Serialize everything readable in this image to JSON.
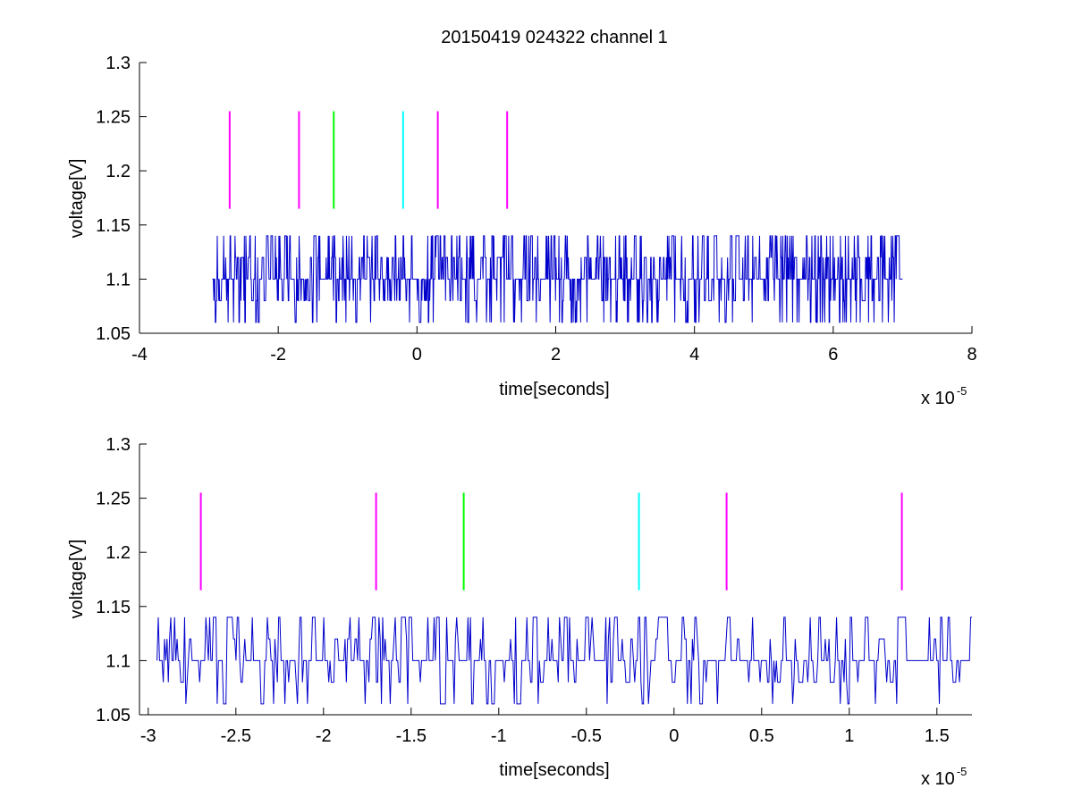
{
  "figure_title": "20150419 024322 channel 1",
  "colors": {
    "signal": "#0000cc",
    "magenta": "#ff00ff",
    "green": "#00ff00",
    "cyan": "#00ffff",
    "axis": "#000000"
  },
  "chart_data": [
    {
      "type": "line",
      "title": "20150419 024322 channel 1",
      "xlabel": "time[seconds]",
      "ylabel": "voltage[V]",
      "x_multiplier": "x 10",
      "x_exponent": "-5",
      "xlim": [
        -4,
        8
      ],
      "ylim": [
        1.05,
        1.3
      ],
      "xticks": [
        "-4",
        "-2",
        "0",
        "2",
        "4",
        "6",
        "8"
      ],
      "yticks": [
        "1.05",
        "1.1",
        "1.15",
        "1.2",
        "1.25",
        "1.3"
      ],
      "grid": false,
      "signal": {
        "x_range": [
          -2.95,
          7.0
        ],
        "levels": [
          1.06,
          1.08,
          1.1,
          1.12,
          1.14
        ],
        "baseline": 1.1
      },
      "markers": [
        {
          "x": -2.7,
          "y_range": [
            1.165,
            1.255
          ],
          "color": "magenta"
        },
        {
          "x": -1.7,
          "y_range": [
            1.165,
            1.255
          ],
          "color": "magenta"
        },
        {
          "x": -1.2,
          "y_range": [
            1.165,
            1.255
          ],
          "color": "green"
        },
        {
          "x": -0.2,
          "y_range": [
            1.165,
            1.255
          ],
          "color": "cyan"
        },
        {
          "x": 0.3,
          "y_range": [
            1.165,
            1.255
          ],
          "color": "magenta"
        },
        {
          "x": 1.3,
          "y_range": [
            1.165,
            1.255
          ],
          "color": "magenta"
        }
      ]
    },
    {
      "type": "line",
      "title": "",
      "xlabel": "time[seconds]",
      "ylabel": "voltage[V]",
      "x_multiplier": "x 10",
      "x_exponent": "-5",
      "xlim": [
        -3.05,
        1.7
      ],
      "ylim": [
        1.05,
        1.3
      ],
      "xticks": [
        "-3",
        "-2.5",
        "-2",
        "-1.5",
        "-1",
        "-0.5",
        "0",
        "0.5",
        "1",
        "1.5"
      ],
      "yticks": [
        "1.05",
        "1.1",
        "1.15",
        "1.2",
        "1.25",
        "1.3"
      ],
      "grid": false,
      "signal": {
        "x_range": [
          -2.95,
          1.7
        ],
        "levels": [
          1.06,
          1.08,
          1.1,
          1.12,
          1.14
        ],
        "baseline": 1.1
      },
      "markers": [
        {
          "x": -2.7,
          "y_range": [
            1.165,
            1.255
          ],
          "color": "magenta"
        },
        {
          "x": -1.7,
          "y_range": [
            1.165,
            1.255
          ],
          "color": "magenta"
        },
        {
          "x": -1.2,
          "y_range": [
            1.165,
            1.255
          ],
          "color": "green"
        },
        {
          "x": -0.2,
          "y_range": [
            1.165,
            1.255
          ],
          "color": "cyan"
        },
        {
          "x": 0.3,
          "y_range": [
            1.165,
            1.255
          ],
          "color": "magenta"
        },
        {
          "x": 1.3,
          "y_range": [
            1.165,
            1.255
          ],
          "color": "magenta"
        }
      ]
    }
  ]
}
